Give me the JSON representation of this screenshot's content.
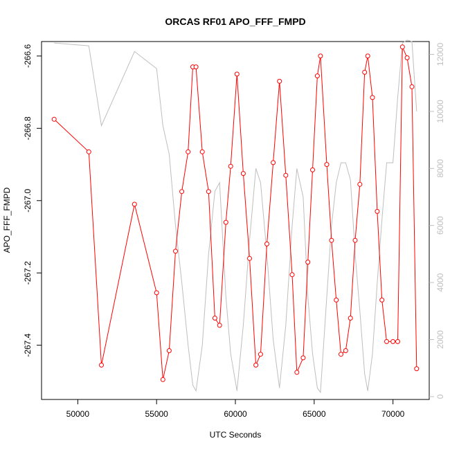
{
  "chart_data": {
    "type": "line",
    "title": "ORCAS RF01 APO_FFF_FMPD",
    "xlabel": "UTC Seconds",
    "ylabel": "APO_FFF_FMPD",
    "xlim": [
      47700,
      72300
    ],
    "ylim": [
      -267.55,
      -266.56
    ],
    "y2lim": [
      -100,
      12450
    ],
    "x_ticks": [
      50000,
      55000,
      60000,
      65000,
      70000
    ],
    "x_tick_labels": [
      "50000",
      "55000",
      "60000",
      "65000",
      "70000"
    ],
    "y_ticks": [
      -267.4,
      -267.2,
      -267.0,
      -266.8,
      -266.6
    ],
    "y_tick_labels": [
      "-267.4",
      "-267.2",
      "-267.0",
      "-266.8",
      "-266.6"
    ],
    "y2_ticks": [
      0,
      2000,
      4000,
      6000,
      8000,
      10000,
      12000
    ],
    "y2_tick_labels": [
      "0",
      "2000",
      "4000",
      "6000",
      "8000",
      "10000",
      "12000"
    ],
    "grid": false,
    "series": [
      {
        "axis": "left",
        "color": "#ff0000",
        "style": "line+open-circles",
        "x": [
          48500,
          50700,
          51500,
          53600,
          55000,
          55400,
          55800,
          56200,
          56600,
          57000,
          57300,
          57500,
          57900,
          58300,
          58700,
          59000,
          59400,
          59700,
          60100,
          60500,
          60900,
          61300,
          61600,
          62000,
          62400,
          62800,
          63200,
          63600,
          63900,
          64300,
          64600,
          64900,
          65200,
          65400,
          65800,
          66100,
          66400,
          66700,
          67000,
          67300,
          67600,
          67900,
          68200,
          68400,
          68700,
          69000,
          69300,
          69600,
          70000,
          70300,
          70600,
          70900,
          71200,
          71500
        ],
        "y": [
          -266.775,
          -266.865,
          -267.455,
          -267.01,
          -267.255,
          -267.495,
          -267.415,
          -267.14,
          -266.975,
          -266.865,
          -266.63,
          -266.63,
          -266.865,
          -266.975,
          -267.325,
          -267.345,
          -267.06,
          -266.905,
          -266.65,
          -266.925,
          -267.16,
          -267.455,
          -267.425,
          -267.12,
          -266.895,
          -266.67,
          -266.93,
          -267.205,
          -267.475,
          -267.435,
          -267.17,
          -266.915,
          -266.655,
          -266.6,
          -266.9,
          -267.11,
          -267.275,
          -267.425,
          -267.415,
          -267.325,
          -267.11,
          -266.955,
          -266.645,
          -266.6,
          -266.715,
          -267.03,
          -267.275,
          -267.39,
          -267.39,
          -267.39,
          -266.575,
          -266.605,
          -266.685,
          -267.465
        ]
      },
      {
        "axis": "right",
        "color": "#bebebe",
        "style": "line",
        "x": [
          48500,
          50700,
          51500,
          53600,
          55000,
          55400,
          55800,
          56200,
          56600,
          57000,
          57300,
          57500,
          57900,
          58300,
          58700,
          59000,
          59400,
          59700,
          60100,
          60500,
          60900,
          61300,
          61600,
          62000,
          62400,
          62800,
          63200,
          63600,
          63900,
          64300,
          64600,
          64900,
          65200,
          65400,
          65800,
          66100,
          66400,
          66700,
          67000,
          67300,
          67600,
          67900,
          68200,
          68400,
          68700,
          69000,
          69300,
          69600,
          70000,
          70300,
          70600,
          70900,
          71200,
          71500
        ],
        "y": [
          12400,
          12300,
          9500,
          12100,
          11500,
          9500,
          8500,
          6000,
          4000,
          1800,
          400,
          200,
          1800,
          5000,
          7200,
          7500,
          3500,
          1500,
          200,
          2500,
          5500,
          8000,
          7500,
          5000,
          2000,
          300,
          2500,
          6000,
          8000,
          7000,
          3500,
          1500,
          300,
          150,
          3500,
          6000,
          7500,
          8200,
          8200,
          7600,
          5000,
          3000,
          800,
          200,
          1500,
          4000,
          6200,
          8200,
          8200,
          10500,
          12400,
          12500,
          12450,
          10000
        ]
      }
    ]
  }
}
